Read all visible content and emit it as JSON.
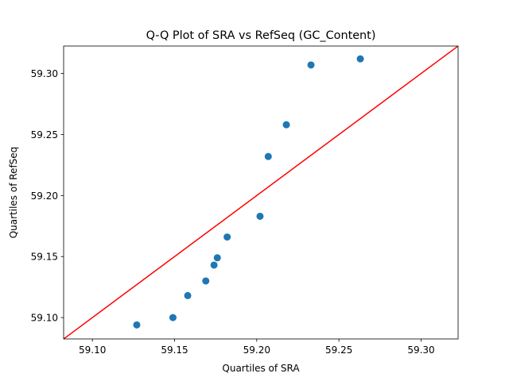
{
  "chart_data": {
    "type": "scatter",
    "title": "Q-Q Plot of SRA vs RefSeq (GC_Content)",
    "xlabel": "Quartiles of SRA",
    "ylabel": "Quartiles of RefSeq",
    "xlim": [
      59.0825,
      59.3225
    ],
    "ylim": [
      59.0825,
      59.3225
    ],
    "xticks": [
      59.1,
      59.15,
      59.2,
      59.25,
      59.3
    ],
    "yticks": [
      59.1,
      59.15,
      59.2,
      59.25,
      59.3
    ],
    "tick_labels": [
      "59.10",
      "59.15",
      "59.20",
      "59.25",
      "59.30"
    ],
    "grid": false,
    "points": [
      {
        "x": 59.127,
        "y": 59.094
      },
      {
        "x": 59.149,
        "y": 59.1
      },
      {
        "x": 59.158,
        "y": 59.118
      },
      {
        "x": 59.169,
        "y": 59.13
      },
      {
        "x": 59.174,
        "y": 59.143
      },
      {
        "x": 59.176,
        "y": 59.149
      },
      {
        "x": 59.182,
        "y": 59.166
      },
      {
        "x": 59.202,
        "y": 59.183
      },
      {
        "x": 59.207,
        "y": 59.232
      },
      {
        "x": 59.218,
        "y": 59.258
      },
      {
        "x": 59.233,
        "y": 59.307
      },
      {
        "x": 59.263,
        "y": 59.312
      }
    ],
    "reference_line": {
      "from": [
        59.0825,
        59.0825
      ],
      "to": [
        59.3225,
        59.3225
      ]
    },
    "colors": {
      "points": "#1f77b4",
      "reference_line": "#ff0000"
    }
  }
}
